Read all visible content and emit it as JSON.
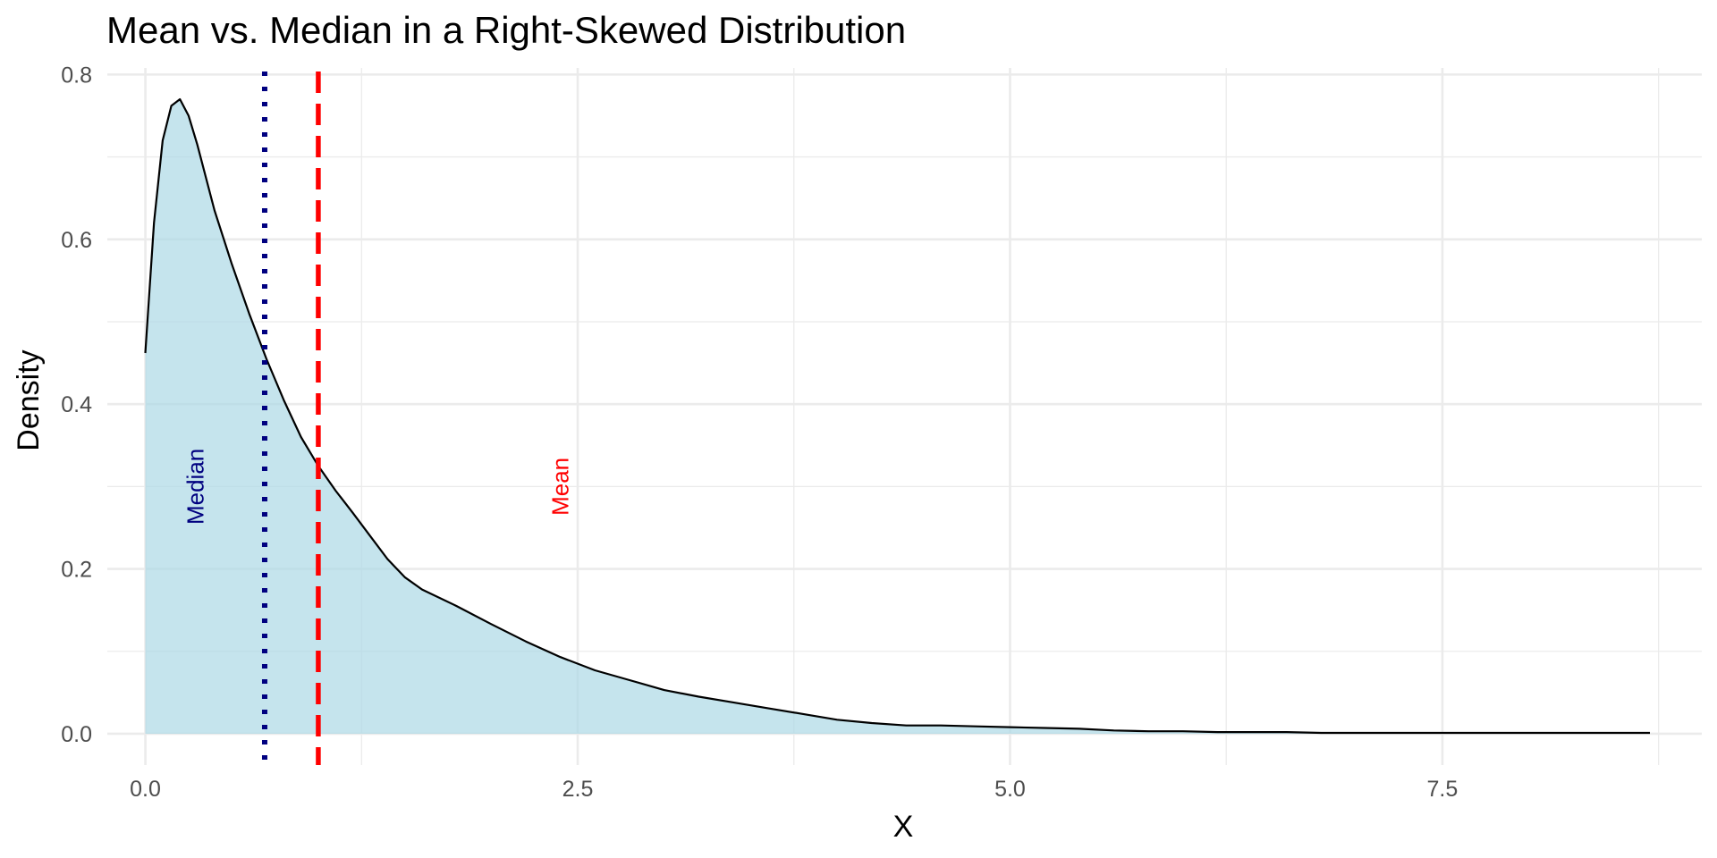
{
  "chart_data": {
    "type": "area",
    "title": "Mean vs. Median in a Right-Skewed Distribution",
    "xlabel": "X",
    "ylabel": "Density",
    "xlim": [
      -0.22,
      9.0
    ],
    "ylim": [
      -0.038,
      0.808
    ],
    "x_ticks": [
      0.0,
      2.5,
      5.0,
      7.5
    ],
    "x_tick_labels": [
      "0.0",
      "2.5",
      "5.0",
      "7.5"
    ],
    "y_ticks": [
      0.0,
      0.2,
      0.4,
      0.6,
      0.8
    ],
    "y_tick_labels": [
      "0.0",
      "0.2",
      "0.4",
      "0.6",
      "0.8"
    ],
    "grid": true,
    "legend": "none",
    "colors": {
      "fill": "#add8e6",
      "curve": "#000000",
      "mean_line": "#ff0000",
      "median_line": "#000080",
      "grid": "#ebebeb"
    },
    "series": [
      {
        "x": [
          0.0,
          0.05,
          0.1,
          0.15,
          0.2,
          0.25,
          0.3,
          0.4,
          0.5,
          0.6,
          0.7,
          0.8,
          0.9,
          1.0,
          1.1,
          1.2,
          1.3,
          1.4,
          1.5,
          1.6,
          1.8,
          2.0,
          2.2,
          2.4,
          2.6,
          2.8,
          3.0,
          3.2,
          3.4,
          3.6,
          3.8,
          4.0,
          4.2,
          4.4,
          4.6,
          4.8,
          5.0,
          5.2,
          5.4,
          5.6,
          5.8,
          6.0,
          6.2,
          6.4,
          6.6,
          6.8,
          7.0,
          7.2,
          7.4,
          7.6,
          7.8,
          8.0,
          8.2,
          8.4,
          8.6,
          8.7
        ],
        "y": [
          0.462,
          0.62,
          0.72,
          0.762,
          0.77,
          0.75,
          0.715,
          0.635,
          0.57,
          0.51,
          0.455,
          0.405,
          0.36,
          0.325,
          0.295,
          0.268,
          0.24,
          0.212,
          0.19,
          0.175,
          0.155,
          0.133,
          0.112,
          0.093,
          0.077,
          0.065,
          0.053,
          0.045,
          0.038,
          0.031,
          0.024,
          0.017,
          0.013,
          0.01,
          0.01,
          0.009,
          0.008,
          0.007,
          0.006,
          0.004,
          0.003,
          0.003,
          0.002,
          0.002,
          0.002,
          0.001,
          0.001,
          0.001,
          0.001,
          0.001,
          0.001,
          0.001,
          0.001,
          0.001,
          0.001,
          0.001
        ]
      }
    ],
    "reference_lines": [
      {
        "label": "Median",
        "x": 0.69,
        "style": "dotted",
        "color": "#000080",
        "label_x": 0.29,
        "label_y": 0.3
      },
      {
        "label": "Mean",
        "x": 1.0,
        "style": "dashed",
        "color": "#ff0000",
        "label_x": 2.4,
        "label_y": 0.3
      }
    ]
  }
}
